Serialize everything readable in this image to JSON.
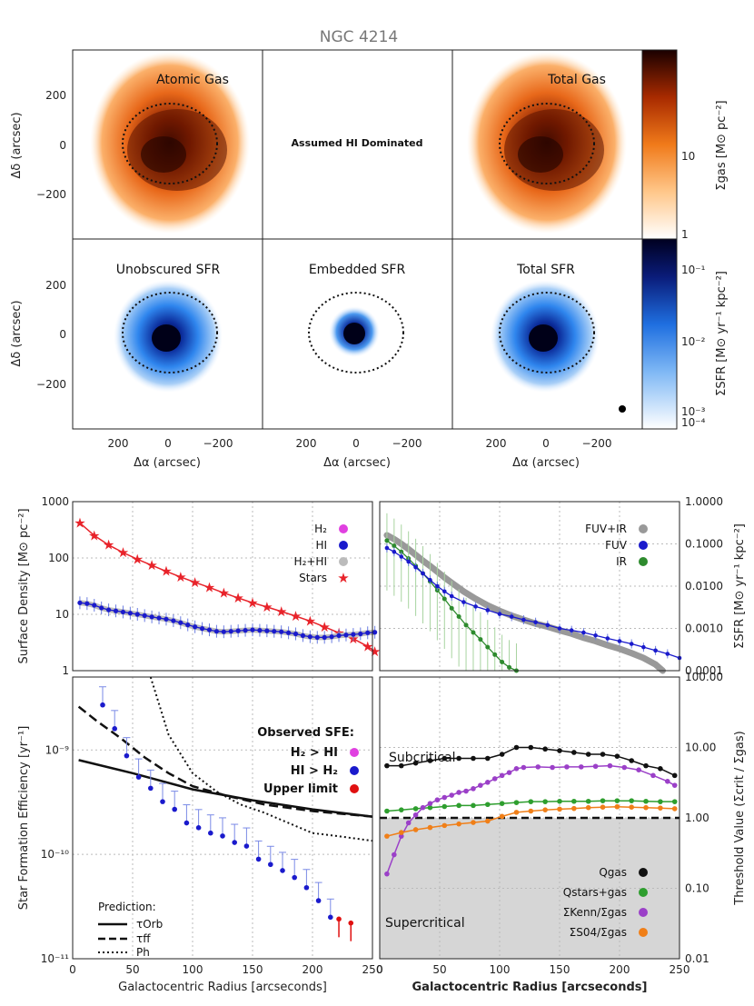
{
  "figure": {
    "title": "NGC 4214",
    "maps": {
      "panel_labels": [
        "Atomic Gas",
        "",
        "Total Gas",
        "Unobscured SFR",
        "Embedded SFR",
        "Total SFR"
      ],
      "center_note": "Assumed HI Dominated",
      "ylabel": "Δδ (arcsec)",
      "xlabel": "Δα (arcsec)",
      "y_ticks": [
        "200",
        "0",
        "−200"
      ],
      "x_ticks": [
        "200",
        "0",
        "−200"
      ],
      "cbar_gas_label": "Σgas [M⊙ pc⁻²]",
      "cbar_gas_ticks": [
        "10",
        "1"
      ],
      "cbar_sfr_label": "ΣSFR [M⊙ yr⁻¹ kpc⁻²]",
      "cbar_sfr_ticks": [
        "10⁻¹",
        "10⁻²",
        "10⁻³",
        "10⁻⁴"
      ]
    },
    "colors": {
      "gas_dark": "#1a0000",
      "gas_mid": "#e05a00",
      "gas_light": "#ffd9a6",
      "sfr_dark": "#000020",
      "sfr_mid": "#1f6fe0",
      "sfr_light": "#cfe3ff",
      "stars": "#e8232a",
      "hi": "#1a1acc",
      "h2": "#e040e0",
      "h2hi": "#bbbbbb",
      "fuvir": "#999999",
      "ir": "#2e8b2e",
      "upper": "#e01010",
      "qstars": "#2e9e2e",
      "qkenn": "#9b40c8",
      "qs04": "#f07f18",
      "supercritical_bg": "#d6d6d6"
    }
  },
  "chart_data": [
    {
      "type": "line",
      "panel": "surface-density",
      "ylabel": "Surface Density [M⊙ pc⁻²]",
      "yscale": "log",
      "ylim": [
        1,
        1000
      ],
      "xlim": [
        0,
        250
      ],
      "y_ticks": [
        "1000",
        "100",
        "10",
        "1"
      ],
      "legend": [
        "H₂",
        "HI",
        "H₂+HI",
        "Stars"
      ],
      "series": [
        {
          "name": "Stars",
          "x": [
            6,
            18,
            30,
            42,
            54,
            66,
            78,
            90,
            102,
            114,
            126,
            138,
            150,
            162,
            174,
            186,
            198,
            210,
            222,
            234,
            246,
            252
          ],
          "y": [
            420,
            250,
            170,
            125,
            95,
            74,
            58,
            46,
            37,
            30,
            24,
            19.5,
            16,
            13.5,
            11.2,
            9.3,
            7.6,
            6,
            4.7,
            3.7,
            2.7,
            2.2
          ]
        },
        {
          "name": "HI",
          "x": [
            6,
            12,
            18,
            24,
            30,
            36,
            42,
            48,
            54,
            60,
            66,
            72,
            78,
            84,
            90,
            96,
            102,
            108,
            114,
            120,
            126,
            132,
            138,
            144,
            150,
            156,
            162,
            168,
            174,
            180,
            186,
            192,
            198,
            204,
            210,
            216,
            222,
            228,
            234,
            240,
            246,
            252
          ],
          "y": [
            16,
            15.5,
            14.5,
            13,
            12,
            11.5,
            11,
            10.5,
            10,
            9.5,
            9,
            8.6,
            8.2,
            7.7,
            7.1,
            6.5,
            6,
            5.6,
            5.3,
            5,
            4.9,
            5,
            5.1,
            5.2,
            5.3,
            5.2,
            5.1,
            5,
            4.9,
            4.7,
            4.5,
            4.2,
            4,
            3.9,
            3.9,
            4,
            4.2,
            4.3,
            4.4,
            4.5,
            4.7,
            4.8
          ]
        }
      ]
    },
    {
      "type": "line",
      "panel": "sfr-density",
      "ylabel": "ΣSFR [M⊙ yr⁻¹ kpc⁻²]",
      "yscale": "log",
      "ylim": [
        0.0001,
        1.0
      ],
      "xlim": [
        0,
        250
      ],
      "y_ticks": [
        "1.0000",
        "0.1000",
        "0.0100",
        "0.0010",
        "0.0001"
      ],
      "legend": [
        "FUV+IR",
        "FUV",
        "IR"
      ],
      "series": [
        {
          "name": "FUV+IR",
          "x": [
            6,
            12,
            18,
            24,
            30,
            36,
            42,
            48,
            54,
            60,
            70,
            80,
            90,
            100,
            110,
            120,
            130,
            140,
            150,
            160,
            170,
            180,
            190,
            200,
            210,
            220,
            230,
            236
          ],
          "y": [
            0.16,
            0.13,
            0.1,
            0.075,
            0.055,
            0.04,
            0.03,
            0.022,
            0.016,
            0.012,
            0.0075,
            0.005,
            0.0035,
            0.0026,
            0.002,
            0.0016,
            0.0013,
            0.0011,
            0.0009,
            0.00075,
            0.0006,
            0.0005,
            0.0004,
            0.00033,
            0.00026,
            0.0002,
            0.00014,
            0.0001
          ]
        },
        {
          "name": "FUV",
          "x": [
            6,
            12,
            18,
            24,
            30,
            36,
            42,
            48,
            54,
            60,
            70,
            80,
            90,
            100,
            110,
            120,
            130,
            140,
            150,
            160,
            170,
            180,
            190,
            200,
            210,
            220,
            230,
            240,
            250
          ],
          "y": [
            0.08,
            0.065,
            0.05,
            0.038,
            0.028,
            0.02,
            0.014,
            0.01,
            0.0075,
            0.0058,
            0.0042,
            0.0033,
            0.0027,
            0.0022,
            0.0019,
            0.0016,
            0.0014,
            0.0012,
            0.001,
            0.0009,
            0.0008,
            0.00068,
            0.00058,
            0.0005,
            0.00043,
            0.00036,
            0.0003,
            0.00025,
            0.0002
          ]
        },
        {
          "name": "IR",
          "x": [
            6,
            12,
            18,
            24,
            30,
            36,
            42,
            48,
            54,
            60,
            66,
            72,
            78,
            84,
            90,
            96,
            102,
            108,
            114
          ],
          "y": [
            0.12,
            0.09,
            0.065,
            0.045,
            0.03,
            0.02,
            0.013,
            0.008,
            0.005,
            0.003,
            0.0019,
            0.0012,
            0.0008,
            0.00055,
            0.00036,
            0.00024,
            0.00016,
            0.00012,
            0.0001
          ]
        }
      ]
    },
    {
      "type": "scatter",
      "panel": "star-formation-efficiency",
      "ylabel": "Star Formation Efficiency [yr⁻¹]",
      "xlabel": "Galactocentric Radius [arcseconds]",
      "yscale": "log",
      "ylim": [
        1e-11,
        5e-09
      ],
      "xlim": [
        0,
        250
      ],
      "y_ticks": [
        "10⁻⁹",
        "10⁻¹⁰",
        "10⁻¹¹"
      ],
      "x_ticks": [
        "0",
        "50",
        "100",
        "150",
        "200",
        "250"
      ],
      "legend_title": "Observed SFE:",
      "legend": [
        "H₂ > HI",
        "HI > H₂",
        "Upper limit"
      ],
      "prediction_title": "Prediction:",
      "prediction_legend": [
        "τOrb",
        "τff",
        "Ph"
      ],
      "series": [
        {
          "name": "HI > H₂",
          "x": [
            25,
            35,
            45,
            55,
            65,
            75,
            85,
            95,
            105,
            115,
            125,
            135,
            145,
            155,
            165,
            175,
            185,
            195,
            205,
            215
          ],
          "y": [
            2.7e-09,
            1.6e-09,
            8.8e-10,
            5.5e-10,
            4.3e-10,
            3.2e-10,
            2.7e-10,
            2e-10,
            1.8e-10,
            1.6e-10,
            1.5e-10,
            1.3e-10,
            1.2e-10,
            9e-11,
            8e-11,
            7e-11,
            6e-11,
            4.8e-11,
            3.6e-11,
            2.5e-11
          ]
        },
        {
          "name": "Upper limit",
          "x": [
            222,
            232
          ],
          "y": [
            2.4e-11,
            2.2e-11
          ]
        },
        {
          "name": "τOrb",
          "x": [
            5,
            50,
            100,
            150,
            200,
            255
          ],
          "y": [
            8e-10,
            6e-10,
            4.2e-10,
            3.3e-10,
            2.7e-10,
            2.3e-10
          ]
        },
        {
          "name": "τff",
          "x": [
            5,
            20,
            40,
            60,
            80,
            100,
            130,
            160,
            200,
            255
          ],
          "y": [
            2.6e-09,
            1.9e-09,
            1.3e-09,
            8.5e-10,
            6e-10,
            4.5e-10,
            3.6e-10,
            3e-10,
            2.6e-10,
            2.3e-10
          ]
        },
        {
          "name": "Ph",
          "x": [
            65,
            80,
            100,
            120,
            140,
            160,
            180,
            200,
            220,
            255
          ],
          "y": [
            5e-09,
            1.4e-09,
            6e-10,
            4e-10,
            3e-10,
            2.5e-10,
            2e-10,
            1.6e-10,
            1.5e-10,
            1.35e-10
          ]
        }
      ]
    },
    {
      "type": "line",
      "panel": "threshold-value",
      "ylabel": "Threshold Value (Σcrit / Σgas)",
      "xlabel": "Galactocentric Radius [arcseconds]",
      "yscale": "log",
      "ylim": [
        0.01,
        100
      ],
      "xlim": [
        0,
        250
      ],
      "y_ticks": [
        "100.00",
        "10.00",
        "1.00",
        "0.10",
        "0.01"
      ],
      "x_ticks": [
        "0",
        "50",
        "100",
        "150",
        "200",
        "250"
      ],
      "region_labels": [
        "Subcritical",
        "Supercritical"
      ],
      "threshold": 1,
      "legend": [
        "Qgas",
        "Qstars+gas",
        "ΣKenn/Σgas",
        "ΣS04/Σgas"
      ],
      "series": [
        {
          "name": "Qgas",
          "x": [
            6,
            18,
            30,
            42,
            54,
            66,
            78,
            90,
            102,
            114,
            126,
            138,
            150,
            162,
            174,
            186,
            198,
            210,
            222,
            234,
            246
          ],
          "y": [
            5.5,
            5.5,
            6,
            6.5,
            7,
            7,
            7,
            7,
            8,
            10,
            10,
            9.5,
            9,
            8.5,
            8,
            8,
            7.5,
            6.5,
            5.5,
            5,
            4
          ]
        },
        {
          "name": "Qstars+gas",
          "x": [
            6,
            18,
            30,
            42,
            54,
            66,
            78,
            90,
            102,
            114,
            126,
            138,
            150,
            162,
            174,
            186,
            198,
            210,
            222,
            234,
            246
          ],
          "y": [
            1.25,
            1.3,
            1.35,
            1.4,
            1.45,
            1.5,
            1.5,
            1.55,
            1.6,
            1.65,
            1.7,
            1.7,
            1.72,
            1.72,
            1.72,
            1.75,
            1.75,
            1.75,
            1.72,
            1.7,
            1.7
          ]
        },
        {
          "name": "ΣKenn/Σgas",
          "x": [
            6,
            12,
            18,
            24,
            30,
            36,
            42,
            48,
            54,
            60,
            66,
            72,
            78,
            84,
            90,
            96,
            102,
            108,
            114,
            120,
            132,
            144,
            156,
            168,
            180,
            192,
            204,
            216,
            228,
            240,
            246
          ],
          "y": [
            0.16,
            0.3,
            0.55,
            0.85,
            1.1,
            1.4,
            1.6,
            1.8,
            1.95,
            2.1,
            2.3,
            2.4,
            2.6,
            2.9,
            3.2,
            3.6,
            4,
            4.4,
            5,
            5.2,
            5.3,
            5.2,
            5.3,
            5.3,
            5.4,
            5.5,
            5.2,
            4.8,
            4,
            3.3,
            2.9
          ]
        },
        {
          "name": "ΣS04/Σgas",
          "x": [
            6,
            18,
            30,
            42,
            54,
            66,
            78,
            90,
            102,
            114,
            126,
            138,
            150,
            162,
            174,
            186,
            198,
            210,
            222,
            234,
            246
          ],
          "y": [
            0.55,
            0.62,
            0.68,
            0.73,
            0.78,
            0.82,
            0.86,
            0.9,
            1.05,
            1.2,
            1.25,
            1.3,
            1.33,
            1.36,
            1.4,
            1.42,
            1.44,
            1.42,
            1.4,
            1.38,
            1.35
          ]
        }
      ]
    }
  ]
}
